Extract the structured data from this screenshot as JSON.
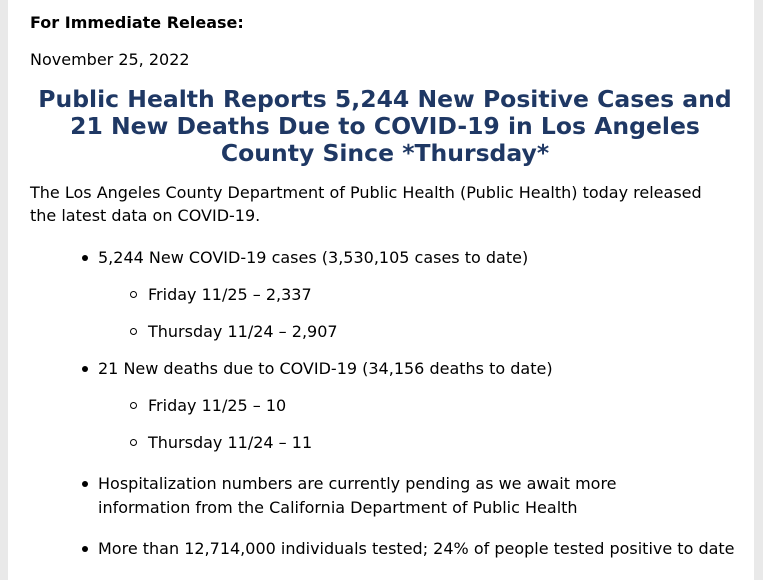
{
  "release_label": "For Immediate Release:",
  "date": "November 25, 2022",
  "headline": "Public Health Reports 5,244 New Positive Cases and 21 New Deaths Due to COVID-19 in Los Angeles County Since *Thursday*",
  "intro": "The Los Angeles County Department of Public Health (Public Health) today released the latest data on COVID-19.",
  "bullets": [
    {
      "text": "5,244 New COVID-19 cases (3,530,105 cases to date)",
      "sub": [
        "Friday 11/25 – 2,337",
        "Thursday 11/24 – 2,907"
      ]
    },
    {
      "text": "21 New deaths due to COVID-19 (34,156 deaths to date)",
      "sub": [
        "Friday 11/25 – 10",
        "Thursday 11/24 – 11"
      ]
    },
    {
      "text": "Hospitalization numbers are currently pending as we await more information from the California Department of Public Health",
      "sub": []
    },
    {
      "text": "More than 12,714,000 individuals tested; 24% of people tested positive to date",
      "sub": []
    }
  ],
  "colors": {
    "headline": "#1f3864",
    "background": "#e9e9e9",
    "page": "#ffffff"
  }
}
